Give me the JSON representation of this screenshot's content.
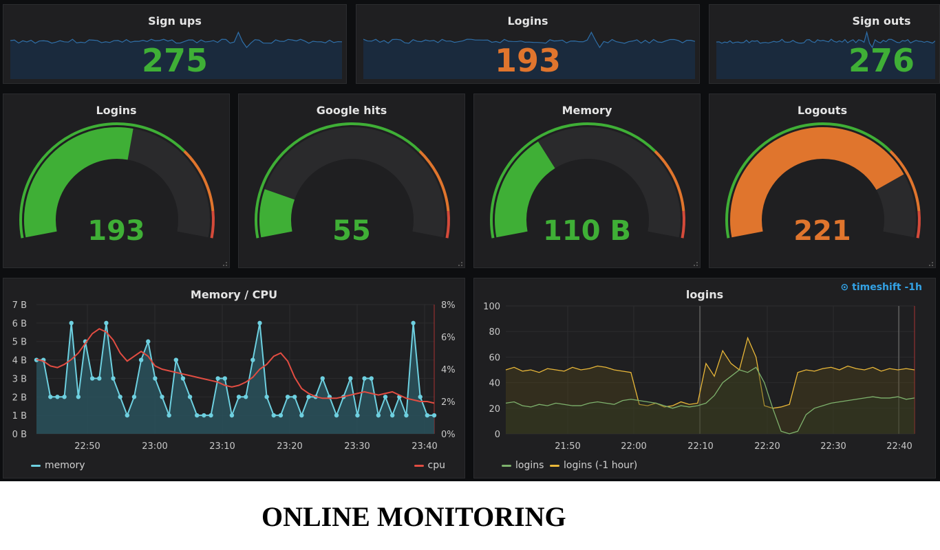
{
  "colors": {
    "green": "#3faf36",
    "orange": "#e0752d",
    "red": "#d44a3a",
    "blue": "#7eb26d",
    "memory": "#6ed0e0",
    "cpu": "#e24d42",
    "logins": "#7eb26d",
    "logins_prev": "#eab839"
  },
  "stats": [
    {
      "title": "Sign ups",
      "value": "275",
      "color": "#3faf36"
    },
    {
      "title": "Logins",
      "value": "193",
      "color": "#e0752d"
    },
    {
      "title": "Sign outs",
      "value": "276",
      "color": "#3faf36"
    }
  ],
  "gauges": [
    {
      "title": "Logins",
      "value": "193",
      "fraction": 0.55,
      "color": "#3faf36"
    },
    {
      "title": "Google hits",
      "value": "55",
      "fraction": 0.15,
      "color": "#3faf36"
    },
    {
      "title": "Memory",
      "value": "110 B",
      "fraction": 0.34,
      "color": "#3faf36"
    },
    {
      "title": "Logouts",
      "value": "221",
      "fraction": 0.8,
      "color": "#e0752d"
    }
  ],
  "memcpu": {
    "title": "Memory / CPU",
    "legend_memory": "memory",
    "legend_cpu": "cpu",
    "left_ticks": [
      "0 B",
      "1 B",
      "2 B",
      "3 B",
      "4 B",
      "5 B",
      "6 B",
      "7 B"
    ],
    "right_ticks": [
      "0%",
      "2%",
      "4%",
      "6%",
      "8%"
    ],
    "x_ticks": [
      "22:50",
      "23:00",
      "23:10",
      "23:20",
      "23:30",
      "23:40"
    ]
  },
  "logins_chart": {
    "title": "logins",
    "timeshift": "⊙ timeshift -1h",
    "legend_logins": "logins",
    "legend_prev": "logins (-1 hour)",
    "y_ticks": [
      "0",
      "20",
      "40",
      "60",
      "80",
      "100"
    ],
    "x_ticks": [
      "21:50",
      "22:00",
      "22:10",
      "22:20",
      "22:30",
      "22:40"
    ]
  },
  "chart_data": [
    {
      "type": "line",
      "title": "Memory / CPU",
      "series": [
        {
          "name": "memory",
          "unit": "B",
          "values": [
            4,
            4,
            2,
            2,
            2,
            6,
            2,
            5,
            3,
            3,
            6,
            3,
            2,
            1,
            2,
            4,
            5,
            3,
            2,
            1,
            4,
            3,
            2,
            1,
            1,
            1,
            3,
            3,
            1,
            2,
            2,
            4,
            6,
            2,
            1,
            1,
            2,
            2,
            1,
            2,
            2,
            3,
            2,
            1,
            2,
            3,
            1,
            3,
            3,
            1,
            2,
            1,
            2,
            1,
            6,
            2,
            1,
            1
          ]
        },
        {
          "name": "cpu",
          "unit": "%",
          "values": [
            4.6,
            4.5,
            4.2,
            4.1,
            4.3,
            4.6,
            5.0,
            5.6,
            6.2,
            6.5,
            6.3,
            5.8,
            5.0,
            4.5,
            4.8,
            5.1,
            4.8,
            4.2,
            4.0,
            3.9,
            3.8,
            3.7,
            3.6,
            3.5,
            3.4,
            3.3,
            3.2,
            3.0,
            2.9,
            3.0,
            3.2,
            3.5,
            4.0,
            4.3,
            4.8,
            5.0,
            4.5,
            3.5,
            2.8,
            2.5,
            2.3,
            2.2,
            2.2,
            2.2,
            2.3,
            2.4,
            2.5,
            2.6,
            2.5,
            2.4,
            2.5,
            2.6,
            2.4,
            2.2,
            2.1,
            2.0,
            2.0,
            1.9
          ]
        }
      ],
      "x_range": [
        "22:43",
        "23:42"
      ],
      "ylim_left": [
        0,
        7
      ],
      "ylim_right": [
        0,
        8
      ]
    },
    {
      "type": "line",
      "title": "logins",
      "series": [
        {
          "name": "logins",
          "values": [
            24,
            25,
            22,
            21,
            23,
            22,
            24,
            23,
            22,
            22,
            24,
            25,
            24,
            23,
            26,
            27,
            26,
            25,
            24,
            22,
            20,
            22,
            21,
            22,
            24,
            30,
            40,
            45,
            50,
            48,
            52,
            40,
            20,
            2,
            0,
            2,
            15,
            20,
            22,
            24,
            25,
            26,
            27,
            28,
            29,
            28,
            28,
            29,
            27,
            28
          ]
        },
        {
          "name": "logins (-1 hour)",
          "values": [
            50,
            52,
            49,
            50,
            48,
            51,
            50,
            49,
            52,
            50,
            51,
            53,
            52,
            50,
            49,
            48,
            23,
            22,
            24,
            21,
            22,
            25,
            23,
            24,
            55,
            45,
            65,
            55,
            50,
            75,
            60,
            22,
            20,
            21,
            23,
            48,
            50,
            49,
            51,
            52,
            50,
            53,
            51,
            50,
            52,
            49,
            51,
            50,
            51,
            50
          ]
        }
      ],
      "x_range": [
        "21:43",
        "22:43"
      ],
      "ylim": [
        0,
        100
      ]
    }
  ],
  "caption": "ONLINE MONITORING"
}
